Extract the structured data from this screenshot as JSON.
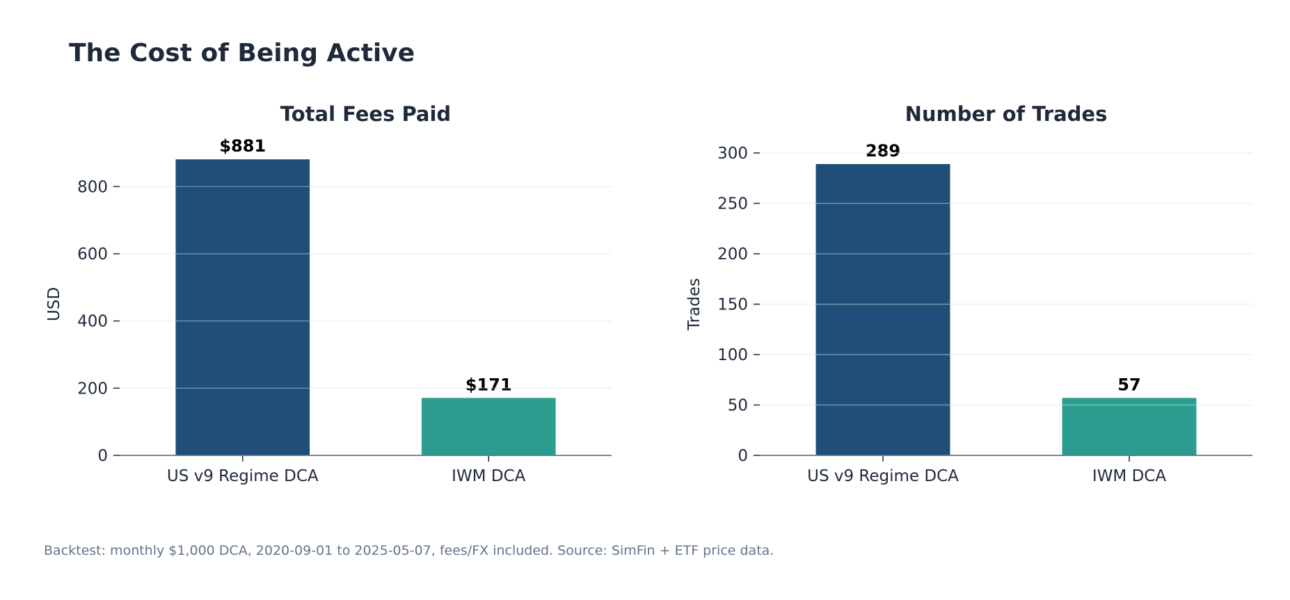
{
  "page": {
    "title": "The Cost of Being Active",
    "caption": "Backtest: monthly $1,000 DCA, 2020-09-01 to 2025-05-07, fees/FX included. Source: SimFin + ETF price data."
  },
  "colors": {
    "series_primary": "#1f4e79",
    "series_secondary": "#2a9d8f",
    "text": "#1e293b",
    "axis": "#64748b",
    "grid": "#e5e7eb",
    "caption": "#64748b"
  },
  "chart_data": [
    {
      "type": "bar",
      "title": "Total Fees Paid",
      "xlabel": "",
      "ylabel": "USD",
      "categories": [
        "US v9 Regime DCA",
        "IWM DCA"
      ],
      "values": [
        881,
        171
      ],
      "data_labels": [
        "$881",
        "$171"
      ],
      "ylim": [
        0,
        900
      ],
      "yticks": [
        0,
        200,
        400,
        600,
        800
      ],
      "grid": true,
      "legend": "none"
    },
    {
      "type": "bar",
      "title": "Number of Trades",
      "xlabel": "",
      "ylabel": "Trades",
      "categories": [
        "US v9 Regime DCA",
        "IWM DCA"
      ],
      "values": [
        289,
        57
      ],
      "data_labels": [
        "289",
        "57"
      ],
      "ylim": [
        0,
        300
      ],
      "yticks": [
        0,
        50,
        100,
        150,
        200,
        250,
        300
      ],
      "grid": true,
      "legend": "none"
    }
  ]
}
